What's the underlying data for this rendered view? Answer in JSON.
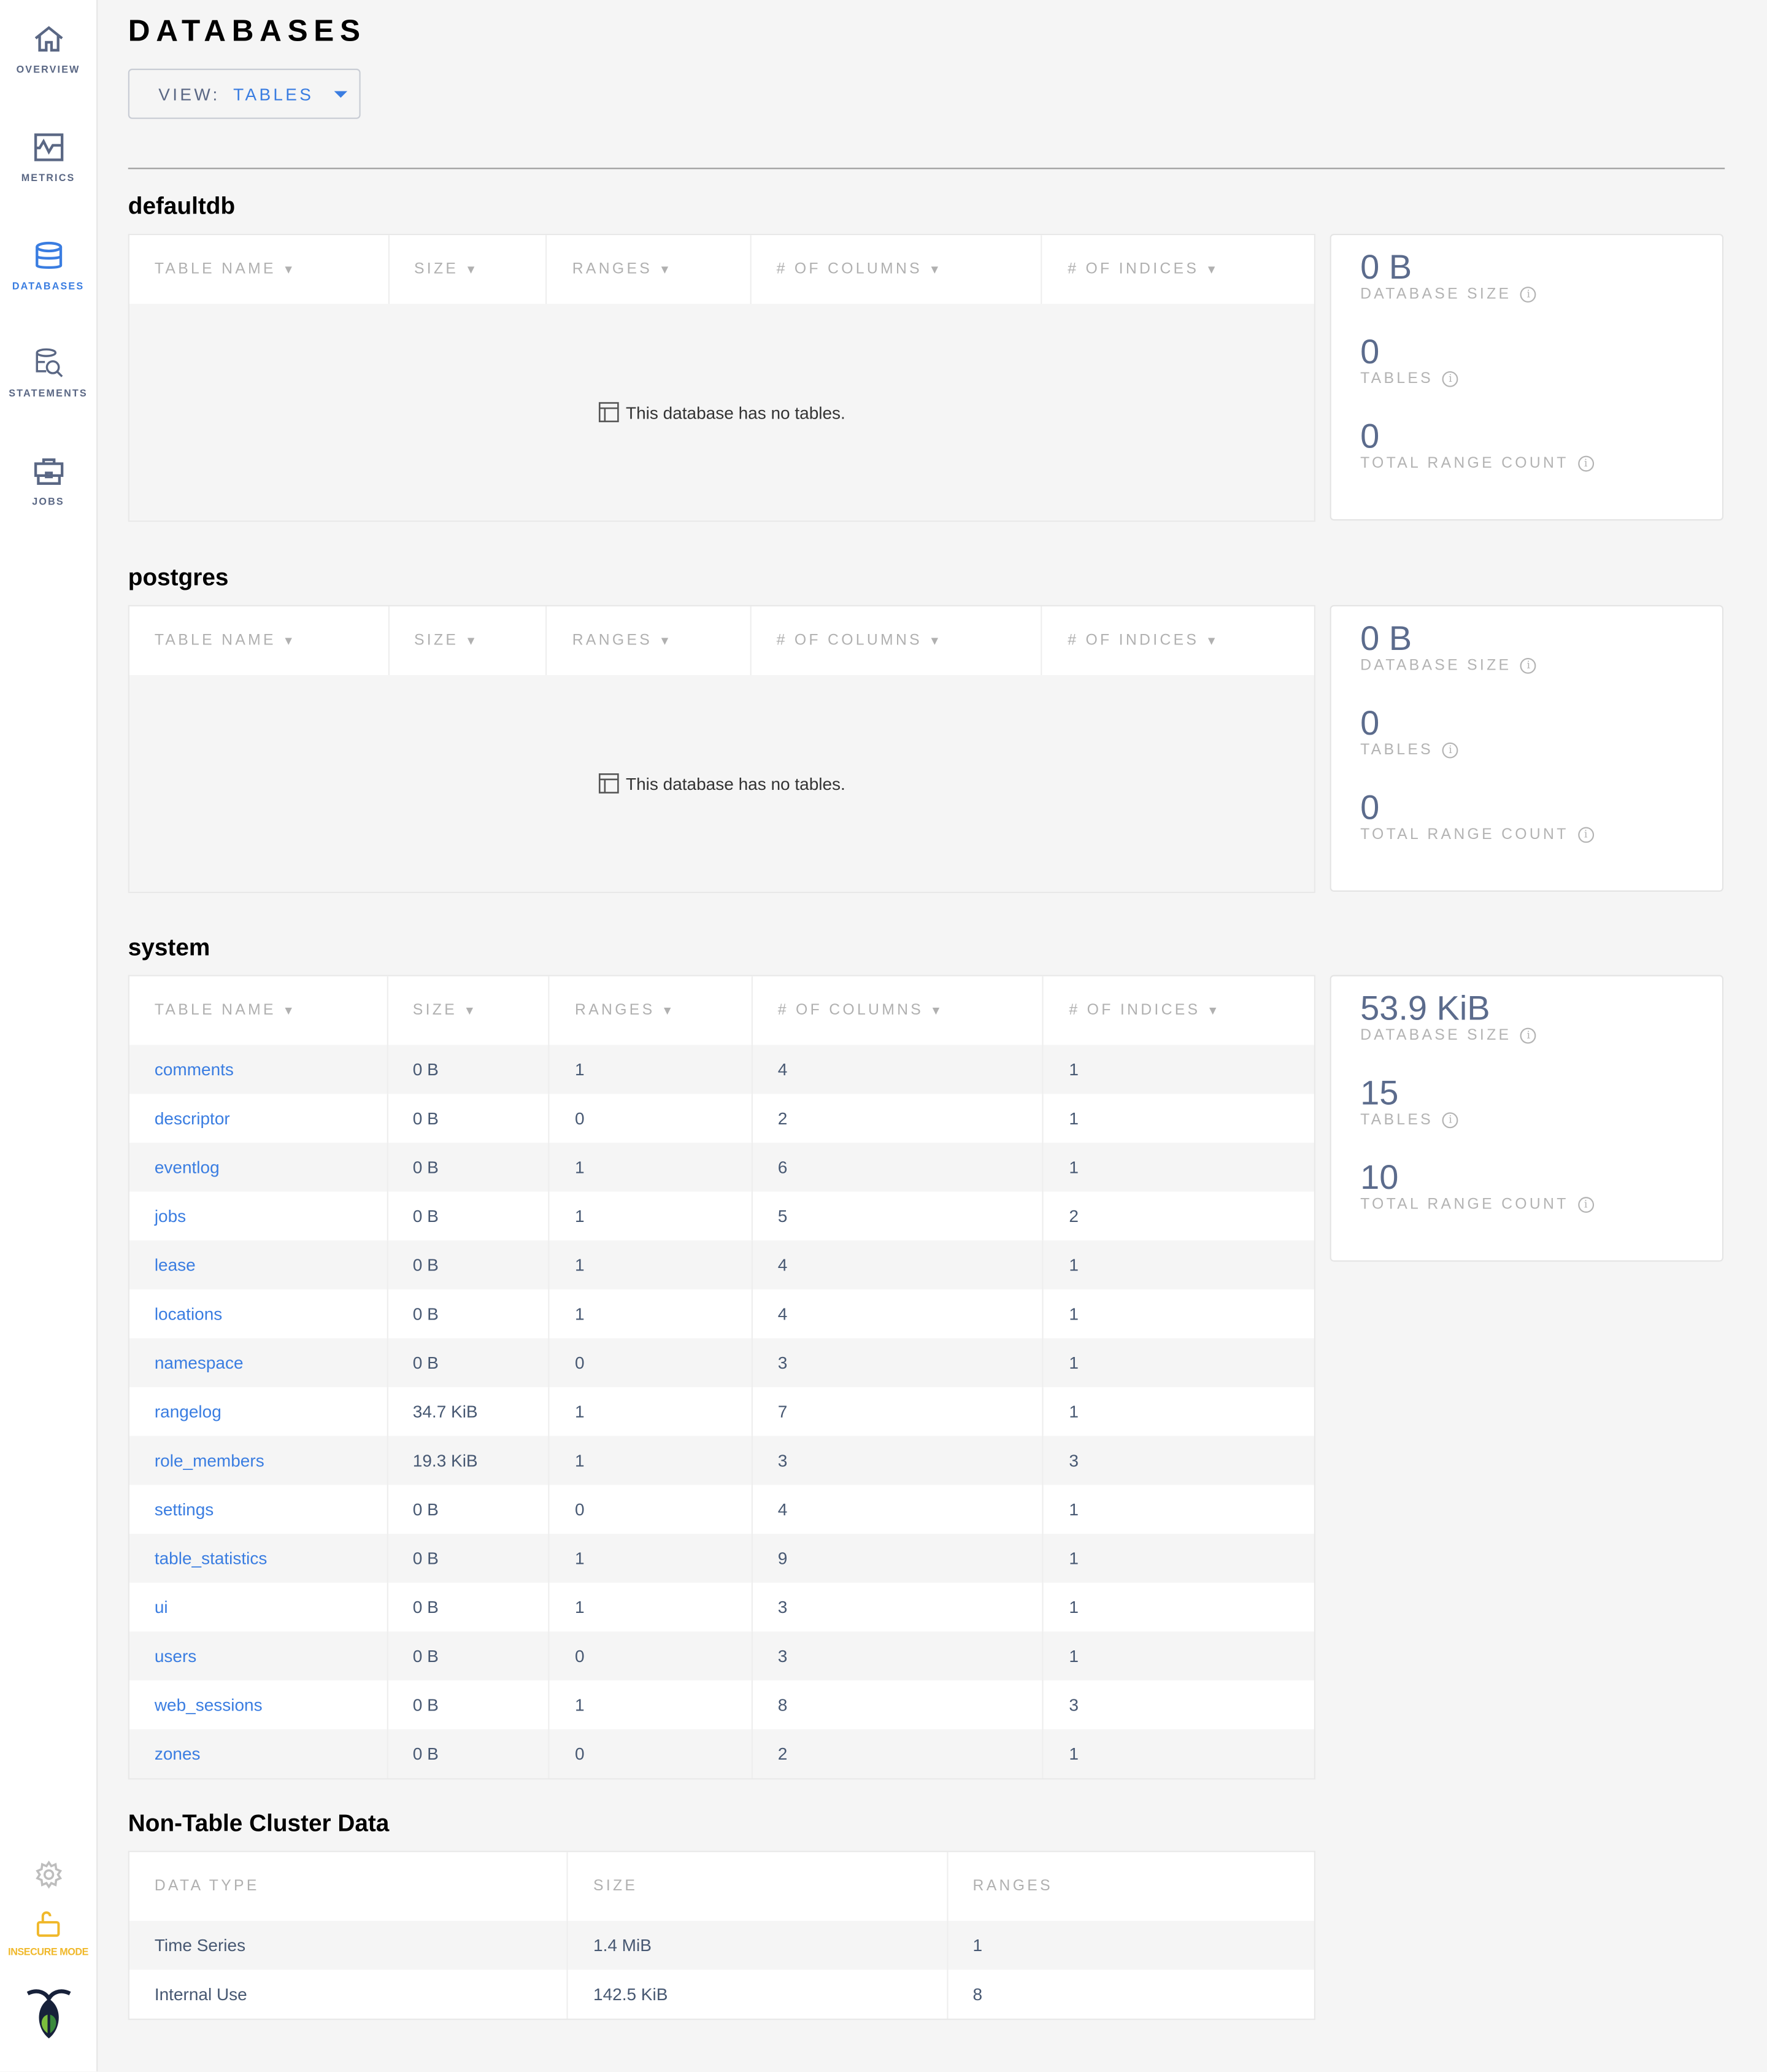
{
  "sidebar": {
    "items": [
      {
        "label": "OVERVIEW",
        "icon": "home-icon"
      },
      {
        "label": "METRICS",
        "icon": "metrics-icon"
      },
      {
        "label": "DATABASES",
        "icon": "database-icon",
        "active": true
      },
      {
        "label": "STATEMENTS",
        "icon": "statements-icon"
      },
      {
        "label": "JOBS",
        "icon": "briefcase-icon"
      }
    ],
    "insecure_label": "INSECURE MODE"
  },
  "page": {
    "title": "DATABASES",
    "view_label": "VIEW:",
    "view_value": "TABLES"
  },
  "colors": {
    "accent": "#3a7de1",
    "warning": "#f0b82a",
    "value": "#5b6b8c"
  },
  "table_headers": [
    "TABLE NAME",
    "SIZE",
    "RANGES",
    "# OF COLUMNS",
    "# OF INDICES"
  ],
  "empty_message": "This database has no tables.",
  "stat_labels": [
    "DATABASE SIZE",
    "TABLES",
    "TOTAL RANGE COUNT"
  ],
  "databases": [
    {
      "name": "defaultdb",
      "size": "0 B",
      "tables": "0",
      "ranges": "0",
      "rows": []
    },
    {
      "name": "postgres",
      "size": "0 B",
      "tables": "0",
      "ranges": "0",
      "rows": []
    },
    {
      "name": "system",
      "size": "53.9 KiB",
      "tables": "15",
      "ranges": "10",
      "rows": [
        [
          "comments",
          "0 B",
          "1",
          "4",
          "1"
        ],
        [
          "descriptor",
          "0 B",
          "0",
          "2",
          "1"
        ],
        [
          "eventlog",
          "0 B",
          "1",
          "6",
          "1"
        ],
        [
          "jobs",
          "0 B",
          "1",
          "5",
          "2"
        ],
        [
          "lease",
          "0 B",
          "1",
          "4",
          "1"
        ],
        [
          "locations",
          "0 B",
          "1",
          "4",
          "1"
        ],
        [
          "namespace",
          "0 B",
          "0",
          "3",
          "1"
        ],
        [
          "rangelog",
          "34.7 KiB",
          "1",
          "7",
          "1"
        ],
        [
          "role_members",
          "19.3 KiB",
          "1",
          "3",
          "3"
        ],
        [
          "settings",
          "0 B",
          "0",
          "4",
          "1"
        ],
        [
          "table_statistics",
          "0 B",
          "1",
          "9",
          "1"
        ],
        [
          "ui",
          "0 B",
          "1",
          "3",
          "1"
        ],
        [
          "users",
          "0 B",
          "0",
          "3",
          "1"
        ],
        [
          "web_sessions",
          "0 B",
          "1",
          "8",
          "3"
        ],
        [
          "zones",
          "0 B",
          "0",
          "2",
          "1"
        ]
      ]
    }
  ],
  "non_table": {
    "title": "Non-Table Cluster Data",
    "headers": [
      "DATA TYPE",
      "SIZE",
      "RANGES"
    ],
    "rows": [
      [
        "Time Series",
        "1.4 MiB",
        "1"
      ],
      [
        "Internal Use",
        "142.5 KiB",
        "8"
      ]
    ]
  }
}
